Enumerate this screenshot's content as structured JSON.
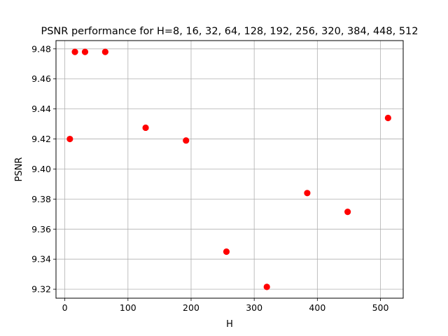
{
  "chart_data": {
    "type": "scatter",
    "title": "PSNR performance for H=8, 16, 32, 64, 128, 192, 256, 320, 384, 448, 512",
    "xlabel": "H",
    "ylabel": "PSNR",
    "xlim": [
      -14,
      536
    ],
    "ylim": [
      9.314,
      9.4855
    ],
    "x_ticks": [
      0,
      100,
      200,
      300,
      400,
      500
    ],
    "y_ticks": [
      9.32,
      9.34,
      9.36,
      9.38,
      9.4,
      9.42,
      9.44,
      9.46,
      9.48
    ],
    "y_tick_labels": [
      "9.32",
      "9.34",
      "9.36",
      "9.38",
      "9.40",
      "9.42",
      "9.44",
      "9.46",
      "9.48"
    ],
    "grid": true,
    "marker_color": "#ff0000",
    "series": [
      {
        "x": [
          8,
          16,
          32,
          64,
          128,
          192,
          256,
          320,
          384,
          448,
          512
        ],
        "y": [
          9.42,
          9.478,
          9.478,
          9.478,
          9.4275,
          9.419,
          9.345,
          9.3215,
          9.384,
          9.3715,
          9.434
        ]
      }
    ]
  }
}
